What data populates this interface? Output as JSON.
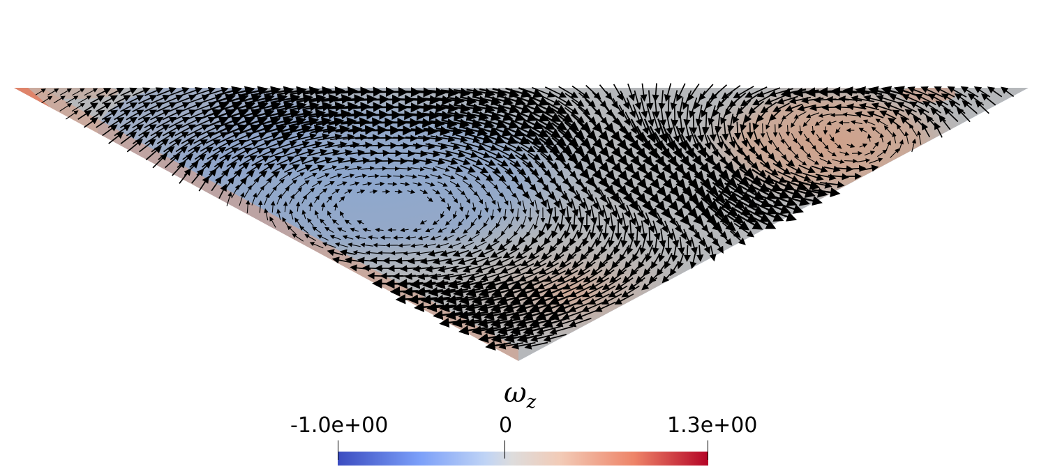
{
  "chart_data": {
    "type": "vector-field",
    "domain_shape": "inverted triangle",
    "scalar": {
      "name": "ω",
      "subscript": "z",
      "colormap": "coolwarm",
      "range": [
        -1.0,
        1.3
      ],
      "tick_labels": [
        "-1.0e+00",
        "0",
        "1.3e+00"
      ],
      "tick_values": [
        -1.0,
        0,
        1.3
      ]
    },
    "colormap_stops": [
      "#3b4cc0",
      "#7b9ff9",
      "#c0d4f5",
      "#dddcdc",
      "#f2cbb7",
      "#ee8468",
      "#b40426"
    ],
    "arrow_color": "#000000",
    "vortices": [
      {
        "sense": "clockwise",
        "core": "negative vorticity",
        "location": "left/center"
      },
      {
        "sense": "counter-clockwise",
        "core": "positive vorticity",
        "location": "upper right"
      }
    ],
    "legend_position": "bottom-center"
  }
}
